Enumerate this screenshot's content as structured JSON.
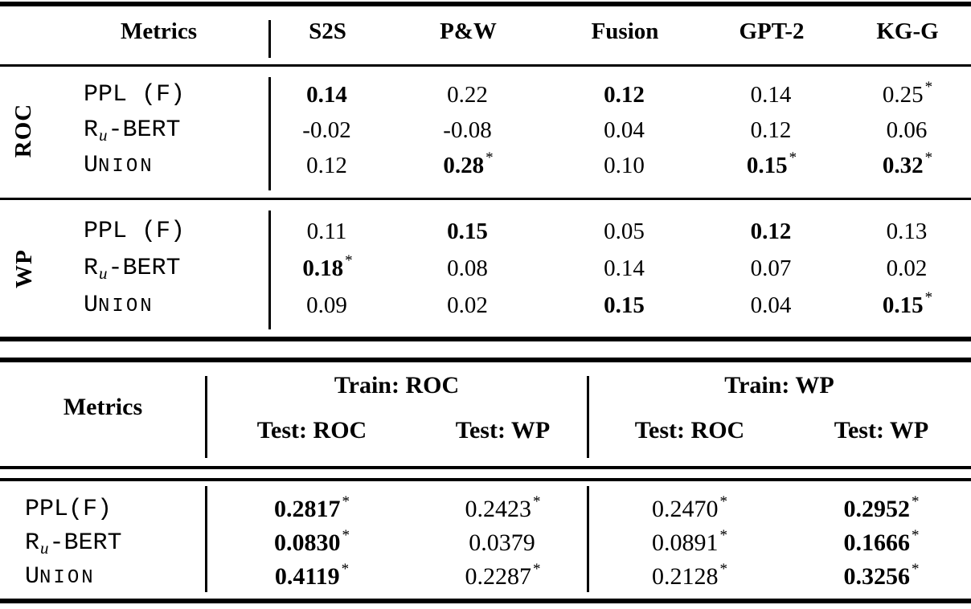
{
  "page": {
    "background": "#ffffff",
    "text_color": "#000000"
  },
  "labels": {
    "ppl_t1": "PPL (F)",
    "ppl_t2": "PPL(F)",
    "ru_pre": "R",
    "ru_sub": "u",
    "ru_post": "-BERT",
    "un_first": "U",
    "un_rest": "NION"
  },
  "table1": {
    "header": {
      "metrics": "Metrics",
      "cols": [
        "S2S",
        "P&W",
        "Fusion",
        "GPT-2",
        "KG-G"
      ]
    },
    "sections": [
      {
        "group": "ROC",
        "rows": [
          {
            "cells": [
              {
                "v": "0.14",
                "b": true
              },
              {
                "v": "0.22"
              },
              {
                "v": "0.12",
                "b": true
              },
              {
                "v": "0.14"
              },
              {
                "v": "0.25",
                "s": "*"
              }
            ]
          },
          {
            "cells": [
              {
                "v": "-0.02"
              },
              {
                "v": "-0.08"
              },
              {
                "v": "0.04"
              },
              {
                "v": "0.12"
              },
              {
                "v": "0.06"
              }
            ]
          },
          {
            "cells": [
              {
                "v": "0.12"
              },
              {
                "v": "0.28",
                "b": true,
                "s": "*"
              },
              {
                "v": "0.10"
              },
              {
                "v": "0.15",
                "b": true,
                "s": "*"
              },
              {
                "v": "0.32",
                "b": true,
                "s": "*"
              }
            ]
          }
        ]
      },
      {
        "group": "WP",
        "rows": [
          {
            "cells": [
              {
                "v": "0.11"
              },
              {
                "v": "0.15",
                "b": true
              },
              {
                "v": "0.05"
              },
              {
                "v": "0.12",
                "b": true
              },
              {
                "v": "0.13"
              }
            ]
          },
          {
            "cells": [
              {
                "v": "0.18",
                "b": true,
                "s": "*"
              },
              {
                "v": "0.08"
              },
              {
                "v": "0.14"
              },
              {
                "v": "0.07"
              },
              {
                "v": "0.02"
              }
            ]
          },
          {
            "cells": [
              {
                "v": "0.09"
              },
              {
                "v": "0.02"
              },
              {
                "v": "0.15",
                "b": true
              },
              {
                "v": "0.04"
              },
              {
                "v": "0.15",
                "b": true,
                "s": "*"
              }
            ]
          }
        ]
      }
    ]
  },
  "table2": {
    "header": {
      "metrics": "Metrics",
      "groups": [
        {
          "train": "Train: ROC",
          "tests": [
            "Test: ROC",
            "Test: WP"
          ]
        },
        {
          "train": "Train: WP",
          "tests": [
            "Test: ROC",
            "Test: WP"
          ]
        }
      ]
    },
    "rows": [
      {
        "cells": [
          {
            "v": "0.2817",
            "b": true,
            "s": "*"
          },
          {
            "v": "0.2423",
            "s": "*"
          },
          {
            "v": "0.2470",
            "s": "*"
          },
          {
            "v": "0.2952",
            "b": true,
            "s": "*"
          }
        ]
      },
      {
        "cells": [
          {
            "v": "0.0830",
            "b": true,
            "s": "*"
          },
          {
            "v": "0.0379"
          },
          {
            "v": "0.0891",
            "s": "*"
          },
          {
            "v": "0.1666",
            "b": true,
            "s": "*"
          }
        ]
      },
      {
        "cells": [
          {
            "v": "0.4119",
            "b": true,
            "s": "*"
          },
          {
            "v": "0.2287",
            "s": "*"
          },
          {
            "v": "0.2128",
            "s": "*"
          },
          {
            "v": "0.3256",
            "b": true,
            "s": "*"
          }
        ]
      }
    ]
  }
}
